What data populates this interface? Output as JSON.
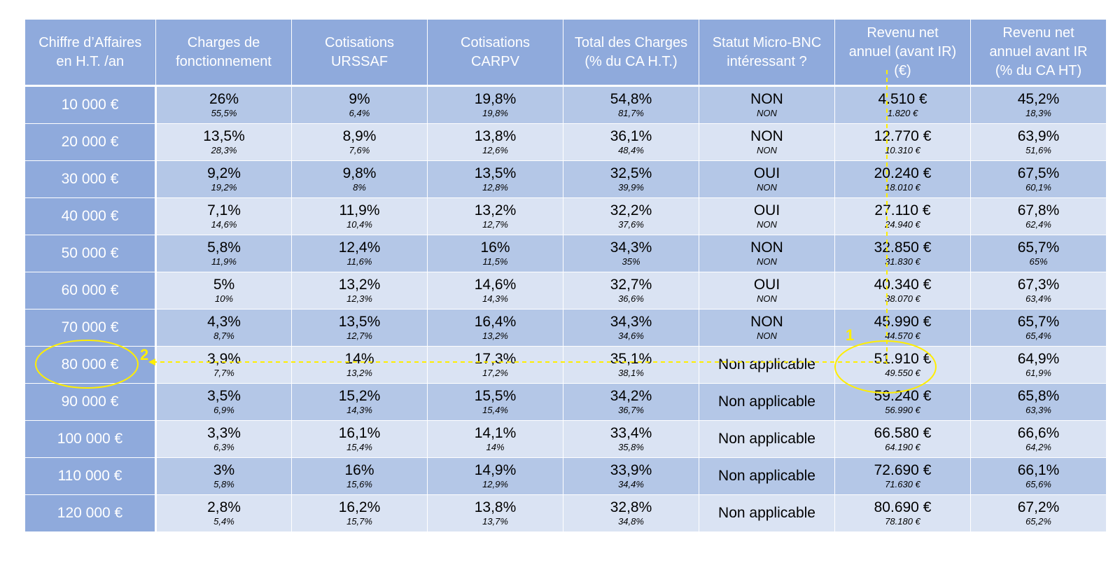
{
  "headers": [
    "Chiffre d’Affaires\nen H.T. /an",
    "Charges de\nfonctionnement",
    "Cotisations\nURSSAF",
    "Cotisations\nCARPV",
    "Total des Charges\n(% du CA H.T.)",
    "Statut Micro-BNC\nintéressant ?",
    "Revenu net\nannuel (avant IR)\n(€)",
    "Revenu net\nannuel avant IR\n(% du CA HT)"
  ],
  "rows": [
    {
      "ca": "10 000 €",
      "cells": [
        [
          "26%",
          "55,5%"
        ],
        [
          "9%",
          "6,4%"
        ],
        [
          "19,8%",
          "19,8%"
        ],
        [
          "54,8%",
          "81,7%"
        ],
        [
          "NON",
          "NON"
        ],
        [
          "4.510 €",
          "1.820 €"
        ],
        [
          "45,2%",
          "18,3%"
        ]
      ]
    },
    {
      "ca": "20 000 €",
      "cells": [
        [
          "13,5%",
          "28,3%"
        ],
        [
          "8,9%",
          "7,6%"
        ],
        [
          "13,8%",
          "12,6%"
        ],
        [
          "36,1%",
          "48,4%"
        ],
        [
          "NON",
          "NON"
        ],
        [
          "12.770 €",
          "10.310 €"
        ],
        [
          "63,9%",
          "51,6%"
        ]
      ]
    },
    {
      "ca": "30 000 €",
      "cells": [
        [
          "9,2%",
          "19,2%"
        ],
        [
          "9,8%",
          "8%"
        ],
        [
          "13,5%",
          "12,8%"
        ],
        [
          "32,5%",
          "39,9%"
        ],
        [
          "OUI",
          "NON"
        ],
        [
          "20.240 €",
          "18.010 €"
        ],
        [
          "67,5%",
          "60,1%"
        ]
      ]
    },
    {
      "ca": "40 000 €",
      "cells": [
        [
          "7,1%",
          "14,6%"
        ],
        [
          "11,9%",
          "10,4%"
        ],
        [
          "13,2%",
          "12,7%"
        ],
        [
          "32,2%",
          "37,6%"
        ],
        [
          "OUI",
          "NON"
        ],
        [
          "27.110 €",
          "24.940 €"
        ],
        [
          "67,8%",
          "62,4%"
        ]
      ]
    },
    {
      "ca": "50 000 €",
      "cells": [
        [
          "5,8%",
          "11,9%"
        ],
        [
          "12,4%",
          "11,6%"
        ],
        [
          "16%",
          "11,5%"
        ],
        [
          "34,3%",
          "35%"
        ],
        [
          "NON",
          "NON"
        ],
        [
          "32.850 €",
          "31.830 €"
        ],
        [
          "65,7%",
          "65%"
        ]
      ]
    },
    {
      "ca": "60 000 €",
      "cells": [
        [
          "5%",
          "10%"
        ],
        [
          "13,2%",
          "12,3%"
        ],
        [
          "14,6%",
          "14,3%"
        ],
        [
          "32,7%",
          "36,6%"
        ],
        [
          "OUI",
          "NON"
        ],
        [
          "40.340 €",
          "38.070 €"
        ],
        [
          "67,3%",
          "63,4%"
        ]
      ]
    },
    {
      "ca": "70 000 €",
      "cells": [
        [
          "4,3%",
          "8,7%"
        ],
        [
          "13,5%",
          "12,7%"
        ],
        [
          "16,4%",
          "13,2%"
        ],
        [
          "34,3%",
          "34,6%"
        ],
        [
          "NON",
          "NON"
        ],
        [
          "45.990 €",
          "44.570 €"
        ],
        [
          "65,7%",
          "65,4%"
        ]
      ]
    },
    {
      "ca": "80 000 €",
      "cells": [
        [
          "3,9%",
          "7,7%"
        ],
        [
          "14%",
          "13,2%"
        ],
        [
          "17,3%",
          "17,2%"
        ],
        [
          "35,1%",
          "38,1%"
        ],
        [
          "Non applicable"
        ],
        [
          "51.910 €",
          "49.550 €"
        ],
        [
          "64,9%",
          "61,9%"
        ]
      ]
    },
    {
      "ca": "90 000 €",
      "cells": [
        [
          "3,5%",
          "6,9%"
        ],
        [
          "15,2%",
          "14,3%"
        ],
        [
          "15,5%",
          "15,4%"
        ],
        [
          "34,2%",
          "36,7%"
        ],
        [
          "Non applicable"
        ],
        [
          "59.240 €",
          "56.990 €"
        ],
        [
          "65,8%",
          "63,3%"
        ]
      ]
    },
    {
      "ca": "100 000 €",
      "cells": [
        [
          "3,3%",
          "6,3%"
        ],
        [
          "16,1%",
          "15,4%"
        ],
        [
          "14,1%",
          "14%"
        ],
        [
          "33,4%",
          "35,8%"
        ],
        [
          "Non applicable"
        ],
        [
          "66.580 €",
          "64.190 €"
        ],
        [
          "66,6%",
          "64,2%"
        ]
      ]
    },
    {
      "ca": "110 000 €",
      "cells": [
        [
          "3%",
          "5,8%"
        ],
        [
          "16%",
          "15,6%"
        ],
        [
          "14,9%",
          "12,9%"
        ],
        [
          "33,9%",
          "34,4%"
        ],
        [
          "Non applicable"
        ],
        [
          "72.690 €",
          "71.630 €"
        ],
        [
          "66,1%",
          "65,6%"
        ]
      ]
    },
    {
      "ca": "120 000 €",
      "cells": [
        [
          "2,8%",
          "5,4%"
        ],
        [
          "16,2%",
          "15,7%"
        ],
        [
          "13,8%",
          "13,7%"
        ],
        [
          "32,8%",
          "34,8%"
        ],
        [
          "Non applicable"
        ],
        [
          "80.690 €",
          "78.180 €"
        ],
        [
          "67,2%",
          "65,2%"
        ]
      ]
    }
  ],
  "annotations": {
    "label_1": "1",
    "label_2": "2",
    "color": "#ffee00"
  },
  "colors": {
    "header": "#8faadc",
    "row_odd": "#b4c7e7",
    "row_even": "#dae3f3",
    "annotation": "#ffee00"
  }
}
